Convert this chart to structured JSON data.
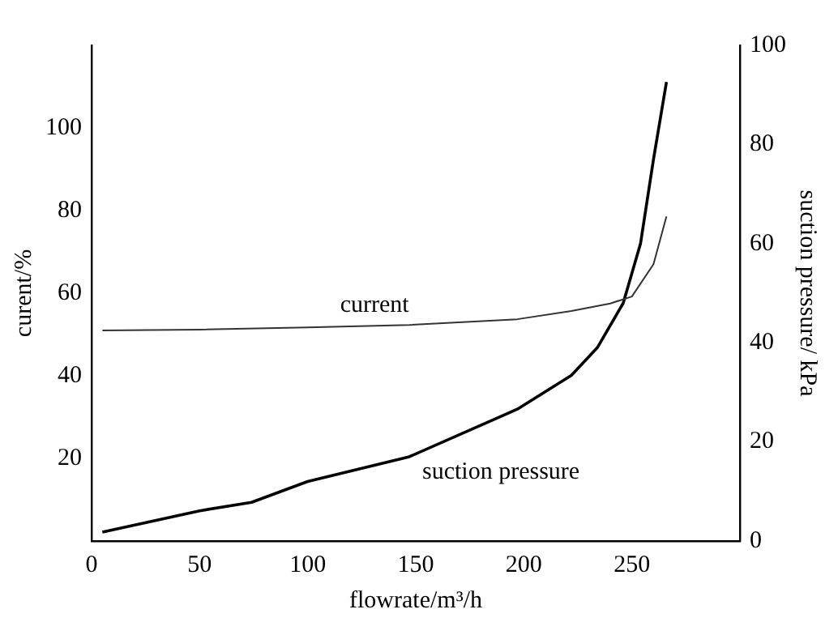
{
  "chart_data": {
    "type": "line",
    "xlabel": "flowrate/m³/h",
    "ylabel": "curent/%",
    "y2label": "suction pressure/ kPa",
    "xlim": [
      0,
      300
    ],
    "xticks": [
      0,
      50,
      100,
      150,
      200,
      250
    ],
    "ylim": [
      0,
      120
    ],
    "yticks": [
      20,
      40,
      60,
      80,
      100
    ],
    "y2lim": [
      0,
      100
    ],
    "y2ticks": [
      0,
      20,
      40,
      60,
      80,
      100
    ],
    "grid": false,
    "legend": false,
    "marker": "none",
    "line_style": "solid",
    "series": [
      {
        "name": "current",
        "color": "#333333",
        "x": [
          5,
          50,
          100,
          147,
          197,
          222,
          240,
          250,
          260,
          266
        ],
        "values": [
          51,
          51.2,
          51.7,
          52.3,
          53.7,
          55.7,
          57.5,
          59.2,
          67,
          78.6
        ]
      },
      {
        "name": "suction pressure",
        "color": "#000000",
        "axis": "y2",
        "x": [
          5,
          50,
          74,
          100,
          147,
          197,
          222,
          234,
          246,
          254,
          260,
          266
        ],
        "values": [
          1.8,
          6.1,
          7.8,
          12,
          17,
          26.6,
          33.4,
          39,
          48,
          60,
          77,
          92.6
        ]
      }
    ]
  }
}
